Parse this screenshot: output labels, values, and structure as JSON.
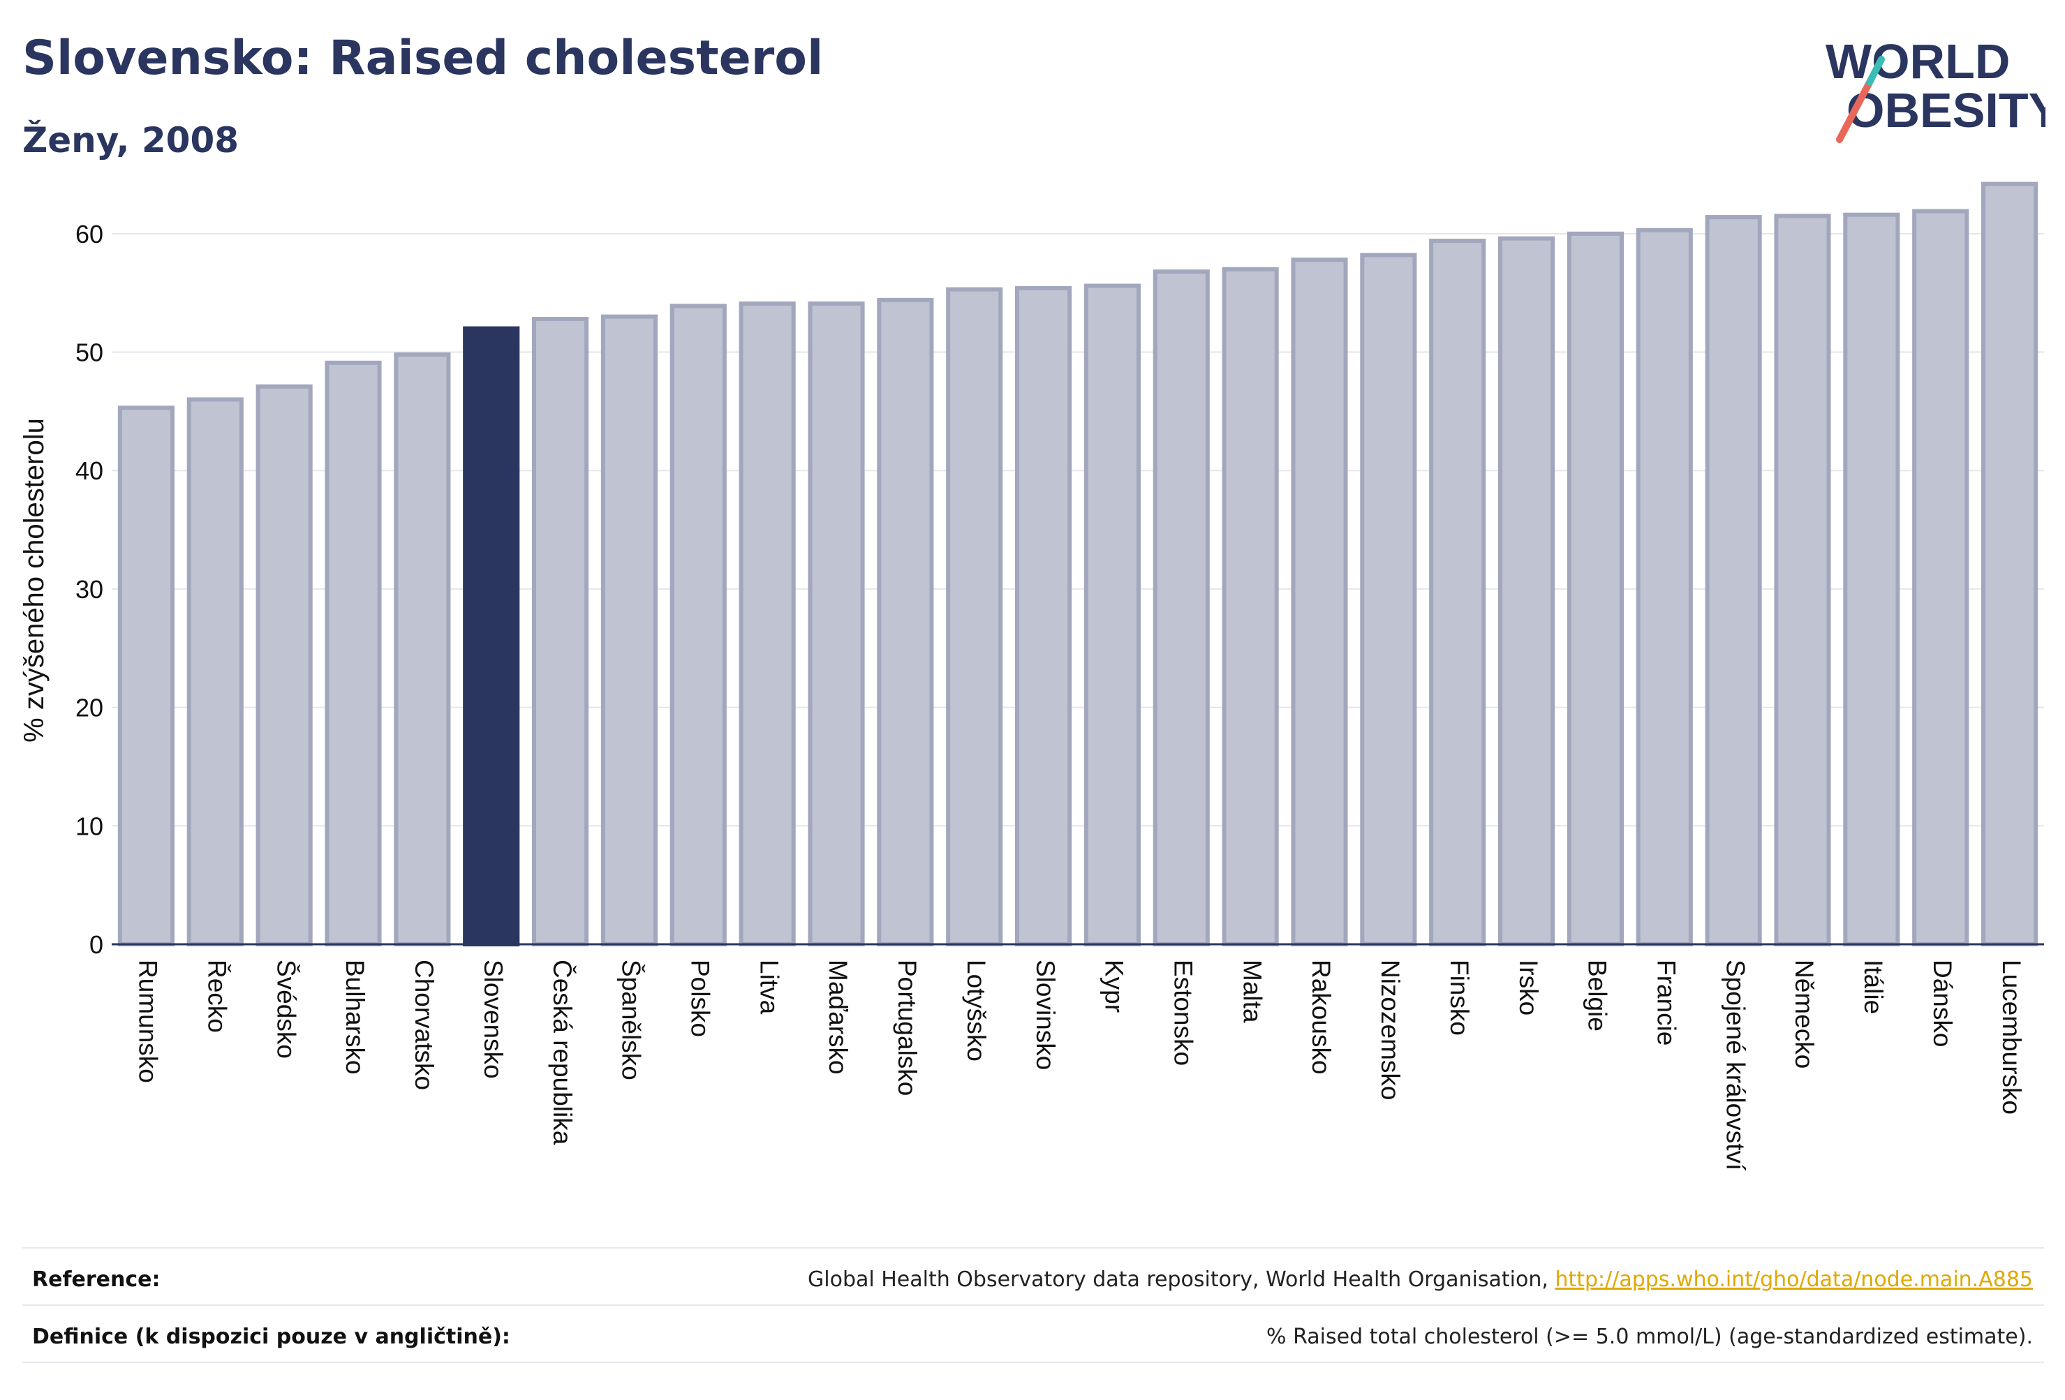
{
  "header": {
    "title": "Slovensko: Raised cholesterol",
    "subtitle": "Ženy, 2008"
  },
  "logo": {
    "line1": "WORLD",
    "line2": "OBESITY",
    "accent_color": "#e8675a",
    "accent_color_2": "#3bbcb4"
  },
  "colors": {
    "bar_default": "#c0c3d1",
    "bar_default_stroke": "#a2a7bd",
    "bar_highlight": "#2a3560",
    "grid": "#e4e6ec",
    "axis": "#2a3560"
  },
  "chart_data": {
    "type": "bar",
    "ylabel": "% zvýšeného cholesterolu",
    "ylim": [
      0,
      65
    ],
    "yticks": [
      0,
      10,
      20,
      30,
      40,
      50,
      60
    ],
    "grid": true,
    "highlight": "Slovensko",
    "categories": [
      "Rumunsko",
      "Řecko",
      "Švédsko",
      "Bulharsko",
      "Chorvatsko",
      "Slovensko",
      "Česká republika",
      "Španělsko",
      "Polsko",
      "Litva",
      "Maďarsko",
      "Portugalsko",
      "Lotyšsko",
      "Slovinsko",
      "Kypr",
      "Estonsko",
      "Malta",
      "Rakousko",
      "Nizozemsko",
      "Finsko",
      "Irsko",
      "Belgie",
      "Francie",
      "Spojené království",
      "Německo",
      "Itálie",
      "Dánsko",
      "Lucembursko"
    ],
    "values": [
      45.3,
      46.0,
      47.1,
      49.1,
      49.8,
      52.0,
      52.8,
      53.0,
      53.9,
      54.1,
      54.1,
      54.4,
      55.3,
      55.4,
      55.6,
      56.8,
      57.0,
      57.8,
      58.2,
      59.4,
      59.6,
      60.0,
      60.3,
      61.4,
      61.5,
      61.6,
      61.9,
      64.2
    ]
  },
  "footer": {
    "reference_label": "Reference:",
    "reference_text": "Global Health Observatory data repository, World Health Organisation, ",
    "reference_link": "http://apps.who.int/gho/data/node.main.A885",
    "definition_label": "Definice (k dispozici pouze v angličtině):",
    "definition_text": "% Raised total cholesterol (>= 5.0 mmol/L) (age-standardized estimate)."
  }
}
